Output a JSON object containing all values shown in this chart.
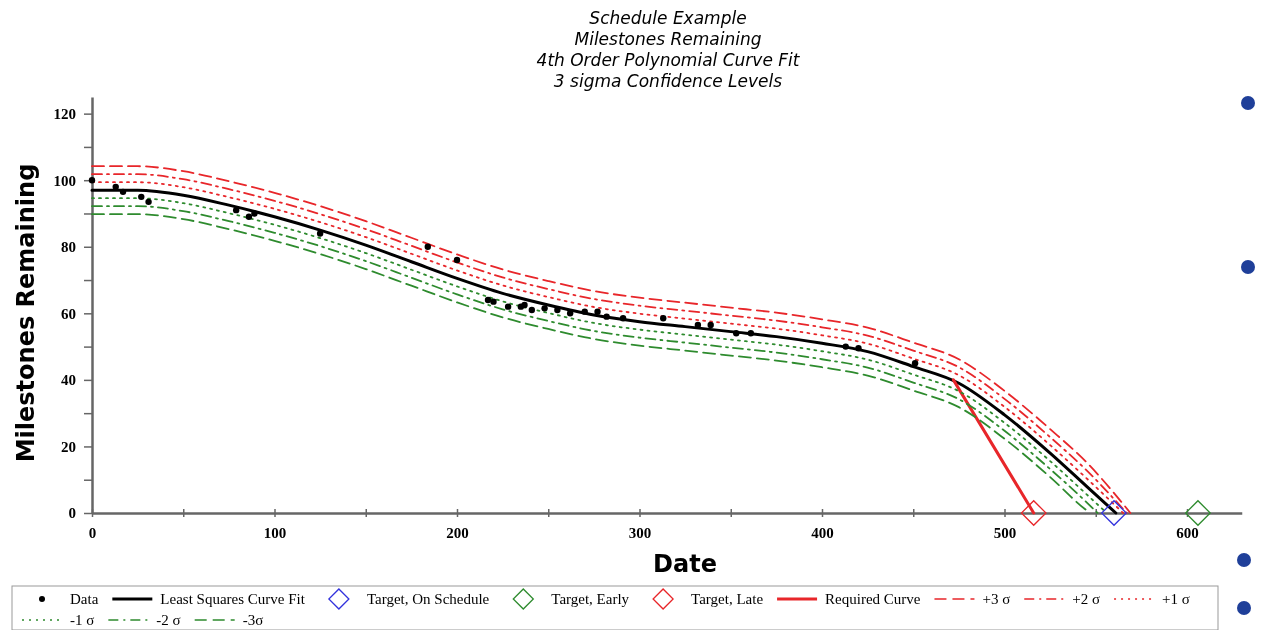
{
  "chart_data": {
    "type": "line",
    "title": "Schedule Example\nMilestones Remaining\n4th Order Polynomial Curve Fit\n3 sigma Confidence Levels",
    "xlabel": "Date",
    "ylabel": "Milestones Remaining",
    "xlim": [
      0,
      630
    ],
    "xticks": [
      0,
      {
        "value": 50,
        "label": null
      },
      100,
      {
        "value": 150,
        "label": null
      },
      200,
      {
        "value": 250,
        "label": null
      },
      300,
      {
        "value": 350,
        "label": null
      },
      400,
      {
        "value": 450,
        "label": null
      },
      500,
      {
        "value": 550,
        "label": null
      },
      600
    ],
    "ylim": [
      0,
      125
    ],
    "yticks": [
      0,
      {
        "value": 10,
        "label": null
      },
      20,
      {
        "value": 30,
        "label": null
      },
      40,
      {
        "value": 50,
        "label": null
      },
      60,
      {
        "value": 70,
        "label": null
      },
      80,
      {
        "value": 90,
        "label": null
      },
      100,
      {
        "value": 110,
        "label": null
      },
      120
    ],
    "grid": false,
    "legend": "bottom",
    "series": [
      {
        "name": "Data",
        "type": "scatter",
        "marker": "circle",
        "color": "#000000",
        "x": [
          0,
          13,
          17,
          27,
          31,
          79,
          86,
          89,
          125,
          184,
          200,
          217,
          220,
          228,
          235,
          237,
          241,
          248,
          255,
          262,
          270,
          277,
          282,
          291,
          313,
          332,
          339,
          353,
          361,
          413,
          420,
          451
        ],
        "values": [
          100,
          98,
          96.5,
          95,
          93.5,
          91,
          89,
          90,
          84,
          80,
          76,
          64,
          63.5,
          62,
          62,
          62.5,
          61,
          61.5,
          61,
          60,
          60.5,
          60.5,
          59,
          58.5,
          58.5,
          56.5,
          56.5,
          54,
          54,
          50,
          49.5,
          45
        ]
      },
      {
        "name": "Least Squares Curve Fit",
        "line_style": "solid",
        "color": "#000000",
        "x": [
          0,
          25,
          50,
          75,
          100,
          125,
          150,
          175,
          200,
          225,
          250,
          275,
          300,
          325,
          350,
          375,
          400,
          425,
          450,
          475,
          500,
          525,
          545,
          561
        ],
        "values": [
          97,
          97,
          95.5,
          92.5,
          89,
          85,
          80.5,
          75.5,
          70.5,
          66,
          62.5,
          59.5,
          57.5,
          56,
          54.5,
          53,
          51,
          48.5,
          44,
          39,
          29.5,
          18,
          8,
          0
        ]
      },
      {
        "name": "Target, On Schedule",
        "type": "scatter",
        "marker": "diamond",
        "color": "#3333dd",
        "x": [
          560
        ],
        "values": [
          0
        ]
      },
      {
        "name": "Target, Early",
        "type": "scatter",
        "marker": "diamond",
        "color": "#2e8b2e",
        "x": [
          606
        ],
        "values": [
          0
        ]
      },
      {
        "name": "Target, Late",
        "type": "scatter",
        "marker": "diamond",
        "color": "#e8262a",
        "x": [
          516
        ],
        "values": [
          0
        ]
      },
      {
        "name": "Required Curve",
        "type": "line",
        "line_style": "solid",
        "color": "#e8262a",
        "x": [
          472,
          516
        ],
        "values": [
          40,
          0
        ]
      },
      {
        "name": "+3 σ",
        "type": "line",
        "line_style": "dashed",
        "color": "#e8262a",
        "x": [
          0,
          25,
          50,
          75,
          100,
          125,
          150,
          175,
          200,
          225,
          250,
          275,
          300,
          325,
          350,
          375,
          400,
          425,
          450,
          475,
          500,
          525,
          545,
          569
        ],
        "values": [
          104.2,
          104.2,
          102.7,
          99.7,
          96.2,
          92.2,
          87.7,
          82.7,
          77.7,
          73.2,
          69.7,
          66.7,
          64.7,
          63.2,
          61.7,
          60.2,
          58.2,
          55.7,
          51.2,
          46.2,
          36.7,
          25.2,
          15.2,
          0
        ]
      },
      {
        "name": "+2 σ",
        "type": "line",
        "line_style": "dashdot",
        "color": "#e8262a",
        "x": [
          0,
          25,
          50,
          75,
          100,
          125,
          150,
          175,
          200,
          225,
          250,
          275,
          300,
          325,
          350,
          375,
          400,
          425,
          450,
          475,
          500,
          525,
          545,
          567
        ],
        "values": [
          101.8,
          101.8,
          100.3,
          97.3,
          93.8,
          89.8,
          85.3,
          80.3,
          75.3,
          70.8,
          67.3,
          64.3,
          62.3,
          60.8,
          59.3,
          57.8,
          55.8,
          53.3,
          48.8,
          43.8,
          34.3,
          22.8,
          12.8,
          0
        ]
      },
      {
        "name": "+1 σ",
        "type": "line",
        "line_style": "dotted",
        "color": "#e8262a",
        "x": [
          0,
          25,
          50,
          75,
          100,
          125,
          150,
          175,
          200,
          225,
          250,
          275,
          300,
          325,
          350,
          375,
          400,
          425,
          450,
          475,
          500,
          525,
          545,
          565
        ],
        "values": [
          99.4,
          99.4,
          97.9,
          94.9,
          91.4,
          87.4,
          82.9,
          77.9,
          72.9,
          68.4,
          64.9,
          61.9,
          59.9,
          58.4,
          56.9,
          55.4,
          53.4,
          50.9,
          46.4,
          41.4,
          31.9,
          20.4,
          10.4,
          0
        ]
      },
      {
        "name": "-1 σ",
        "type": "line",
        "line_style": "dotted",
        "color": "#2e8b2e",
        "x": [
          0,
          25,
          50,
          75,
          100,
          125,
          150,
          175,
          200,
          225,
          250,
          275,
          300,
          325,
          350,
          375,
          400,
          425,
          450,
          475,
          500,
          525,
          545,
          556
        ],
        "values": [
          94.6,
          94.6,
          93.1,
          90.1,
          86.6,
          82.6,
          78.1,
          73.1,
          68.1,
          63.6,
          60.1,
          57.1,
          55.1,
          53.6,
          52.1,
          50.6,
          48.6,
          46.1,
          41.6,
          36.6,
          27.1,
          15.6,
          5.6,
          0
        ]
      },
      {
        "name": "-2 σ",
        "type": "line",
        "line_style": "dashdot",
        "color": "#2e8b2e",
        "x": [
          0,
          25,
          50,
          75,
          100,
          125,
          150,
          175,
          200,
          225,
          250,
          275,
          300,
          325,
          350,
          375,
          400,
          425,
          450,
          475,
          500,
          525,
          545,
          551
        ],
        "values": [
          92.2,
          92.2,
          90.7,
          87.7,
          84.2,
          80.2,
          75.7,
          70.7,
          65.7,
          61.2,
          57.7,
          54.7,
          52.7,
          51.2,
          49.7,
          48.2,
          46.2,
          43.7,
          39.2,
          34.2,
          24.7,
          13.2,
          3.2,
          0
        ]
      },
      {
        "name": "-3σ",
        "type": "line",
        "line_style": "dashed",
        "color": "#2e8b2e",
        "x": [
          0,
          25,
          50,
          75,
          100,
          125,
          150,
          175,
          200,
          225,
          250,
          275,
          300,
          325,
          350,
          375,
          400,
          425,
          450,
          475,
          500,
          525,
          545,
          547
        ],
        "values": [
          89.8,
          89.8,
          88.3,
          85.3,
          81.8,
          77.8,
          73.3,
          68.3,
          63.3,
          58.8,
          55.3,
          52.3,
          50.3,
          48.8,
          47.3,
          45.8,
          43.8,
          41.3,
          36.8,
          31.8,
          22.3,
          10.8,
          0.8,
          0
        ]
      }
    ]
  }
}
